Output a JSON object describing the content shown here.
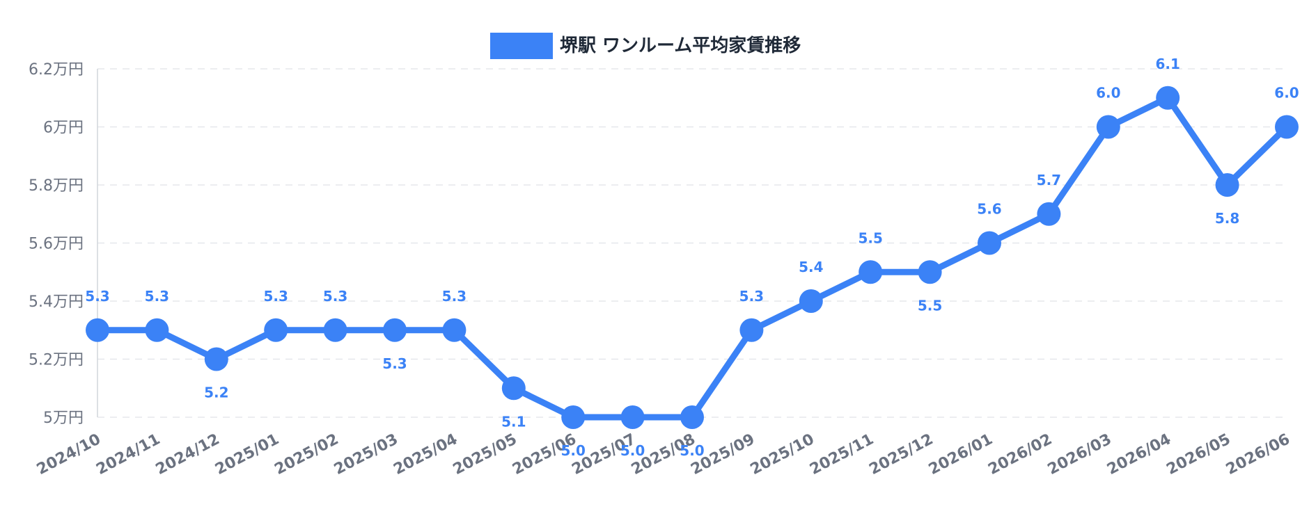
{
  "chart_data": {
    "type": "line",
    "legend": "堺駅 ワンルーム平均家賃推移",
    "legend_position": "top-center",
    "grid": true,
    "color": "#3b82f6",
    "categories": [
      "2024/10",
      "2024/11",
      "2024/12",
      "2025/01",
      "2025/02",
      "2025/03",
      "2025/04",
      "2025/05",
      "2025/06",
      "2025/07",
      "2025/08",
      "2025/09",
      "2025/10",
      "2025/11",
      "2025/12",
      "2026/01",
      "2026/02",
      "2026/03",
      "2026/04",
      "2026/05",
      "2026/06"
    ],
    "series": [
      {
        "name": "堺駅 ワンルーム平均家賃推移",
        "values": [
          5.3,
          5.3,
          5.2,
          5.3,
          5.3,
          5.3,
          5.3,
          5.1,
          5.0,
          5.0,
          5.0,
          5.3,
          5.4,
          5.5,
          5.5,
          5.6,
          5.7,
          6.0,
          6.1,
          5.8,
          6.0
        ]
      }
    ],
    "data_labels": [
      "5.3",
      "5.3",
      "5.2",
      "5.3",
      "5.3",
      "5.3",
      "5.3",
      "5.1",
      "5.0",
      "5.0",
      "5.0",
      "5.3",
      "5.4",
      "5.5",
      "5.5",
      "5.6",
      "5.7",
      "6.0",
      "6.1",
      "5.8",
      "6.0"
    ],
    "ylim": [
      5.0,
      6.2
    ],
    "yticks": [
      5.0,
      5.2,
      5.4,
      5.6,
      5.8,
      6.0,
      6.2
    ],
    "ytick_labels": [
      "5万円",
      "5.2万円",
      "5.4万円",
      "5.6万円",
      "5.8万円",
      "6万円",
      "6.2万円"
    ]
  }
}
